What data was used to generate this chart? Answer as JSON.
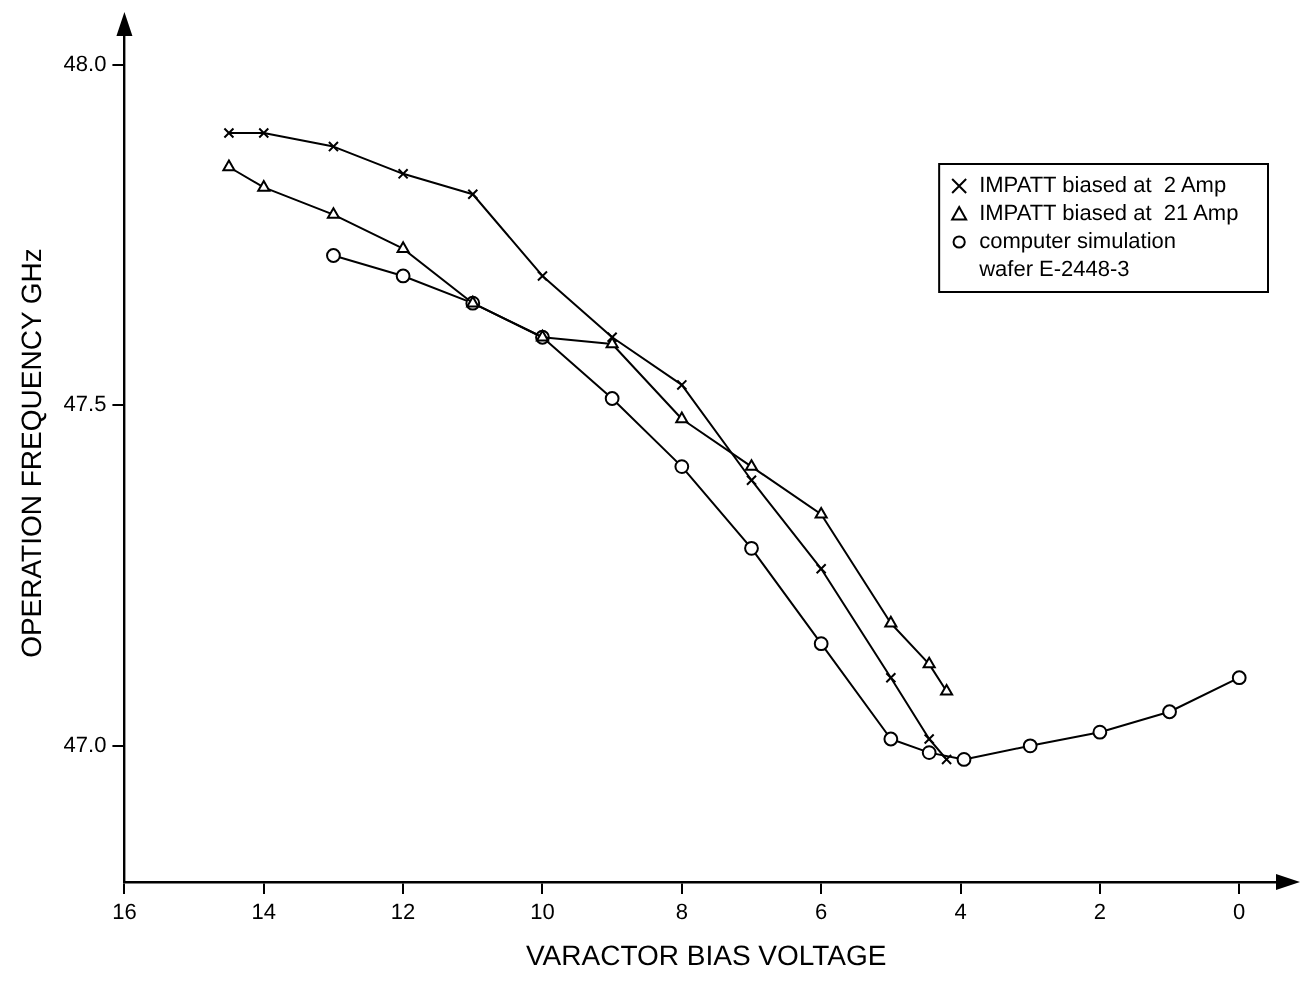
{
  "chart_data": {
    "type": "line",
    "xlabel": "VARACTOR BIAS VOLTAGE",
    "ylabel": "OPERATION FREQUENCY GHz",
    "xlim": [
      16,
      -0.7
    ],
    "xticks": [
      16,
      14,
      12,
      10,
      8,
      6,
      4,
      2,
      0
    ],
    "ylim": [
      46.8,
      48.06
    ],
    "yticks": [
      {
        "value": 47,
        "label": "47.0"
      },
      {
        "value": 47.5,
        "label": "47.5"
      },
      {
        "value": 48,
        "label": "48.0"
      }
    ],
    "grid": false,
    "legend": "top right",
    "line_style": "solid",
    "series": [
      {
        "name": "IMPATT biased at  2 Amp",
        "color": "#000000",
        "marker": "cross",
        "x": [
          14.5,
          14,
          13,
          12,
          11,
          10,
          9,
          8,
          7,
          6,
          5,
          4.45,
          4.2
        ],
        "values": [
          47.9,
          47.9,
          47.88,
          47.84,
          47.81,
          47.69,
          47.6,
          47.53,
          47.39,
          47.26,
          47.1,
          47.01,
          46.98
        ]
      },
      {
        "name": "IMPATT biased at  21 Amp",
        "color": "#000000",
        "marker": "triangle",
        "x": [
          14.5,
          14,
          13,
          12,
          11,
          10,
          9,
          8,
          7,
          6,
          5,
          4.45,
          4.2
        ],
        "values": [
          47.85,
          47.82,
          47.78,
          47.73,
          47.65,
          47.6,
          47.59,
          47.48,
          47.41,
          47.34,
          47.18,
          47.12,
          47.08
        ]
      },
      {
        "name": "computer simulation\nwafer E-2448-3",
        "color": "#000000",
        "marker": "circle",
        "x": [
          13,
          12,
          11,
          10,
          9,
          8,
          7,
          6,
          5,
          4.45,
          3.95,
          3,
          2,
          1,
          0
        ],
        "values": [
          47.72,
          47.69,
          47.65,
          47.6,
          47.51,
          47.41,
          47.29,
          47.15,
          47.01,
          46.99,
          46.98,
          47,
          47.02,
          47.05,
          47.1
        ]
      }
    ]
  }
}
